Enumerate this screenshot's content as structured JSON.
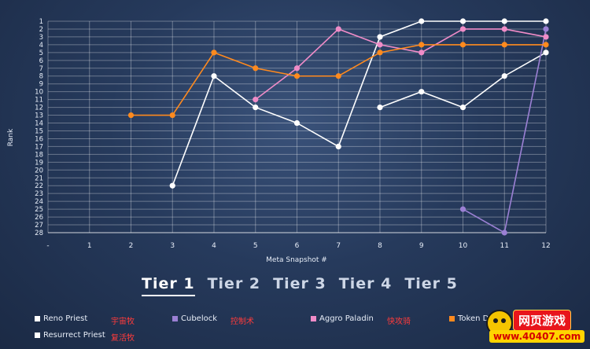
{
  "chart_data": {
    "type": "line",
    "xlabel": "Meta Snapshot #",
    "ylabel": "Rank",
    "x_ticks": [
      "-",
      "1",
      "2",
      "3",
      "4",
      "5",
      "6",
      "7",
      "8",
      "9",
      "10",
      "11",
      "12"
    ],
    "y_ticks": [
      "1",
      "2",
      "3",
      "4",
      "5",
      "6",
      "7",
      "8",
      "9",
      "10",
      "11",
      "12",
      "13",
      "14",
      "15",
      "16",
      "17",
      "18",
      "19",
      "20",
      "21",
      "22",
      "23",
      "24",
      "25",
      "26",
      "27",
      "28"
    ],
    "xlim": [
      0,
      12
    ],
    "ylim": [
      1,
      28
    ],
    "y_inverted": true,
    "grid": true,
    "series": [
      {
        "color": "#ffffff",
        "points": [
          [
            3,
            22
          ],
          [
            4,
            8
          ],
          [
            5,
            12
          ],
          [
            6,
            14
          ],
          [
            7,
            17
          ],
          [
            8,
            3
          ],
          [
            9,
            1
          ],
          [
            10,
            1
          ],
          [
            11,
            1
          ],
          [
            12,
            1
          ]
        ]
      },
      {
        "color": "#ffffff",
        "points": [
          [
            8,
            12
          ],
          [
            9,
            10
          ],
          [
            10,
            12
          ],
          [
            11,
            8
          ],
          [
            12,
            5
          ]
        ]
      },
      {
        "color": "#9b80d4",
        "points": [
          [
            10,
            25
          ],
          [
            11,
            28
          ],
          [
            12,
            2
          ]
        ]
      },
      {
        "color": "#f08cc8",
        "points": [
          [
            5,
            11
          ],
          [
            6,
            7
          ],
          [
            7,
            2
          ],
          [
            8,
            4
          ],
          [
            9,
            5
          ],
          [
            10,
            2
          ],
          [
            11,
            2
          ],
          [
            12,
            3
          ]
        ]
      },
      {
        "color": "#ff8a1e",
        "points": [
          [
            2,
            13
          ],
          [
            3,
            13
          ],
          [
            4,
            5
          ],
          [
            5,
            7
          ],
          [
            6,
            8
          ],
          [
            7,
            8
          ],
          [
            8,
            5
          ],
          [
            9,
            4
          ],
          [
            10,
            4
          ],
          [
            11,
            4
          ],
          [
            12,
            4
          ]
        ]
      }
    ]
  },
  "tiers": [
    "Tier 1",
    "Tier 2",
    "Tier 3",
    "Tier 4",
    "Tier 5"
  ],
  "legend": [
    {
      "label": "Reno Priest",
      "color": "#ffffff",
      "cn": "宇宙牧"
    },
    {
      "label": "Cubelock",
      "color": "#9b80d4",
      "cn": "控制术"
    },
    {
      "label": "Aggro Paladin",
      "color": "#f08cc8",
      "cn": "快攻骑"
    },
    {
      "label": "Token D",
      "color": "#ff8a1e",
      "cn": ""
    },
    {
      "label": "Resurrect Priest",
      "color": "#ffffff",
      "cn": "复活牧"
    }
  ],
  "watermark": {
    "name": "网页游戏",
    "url": "www.40407.com"
  }
}
